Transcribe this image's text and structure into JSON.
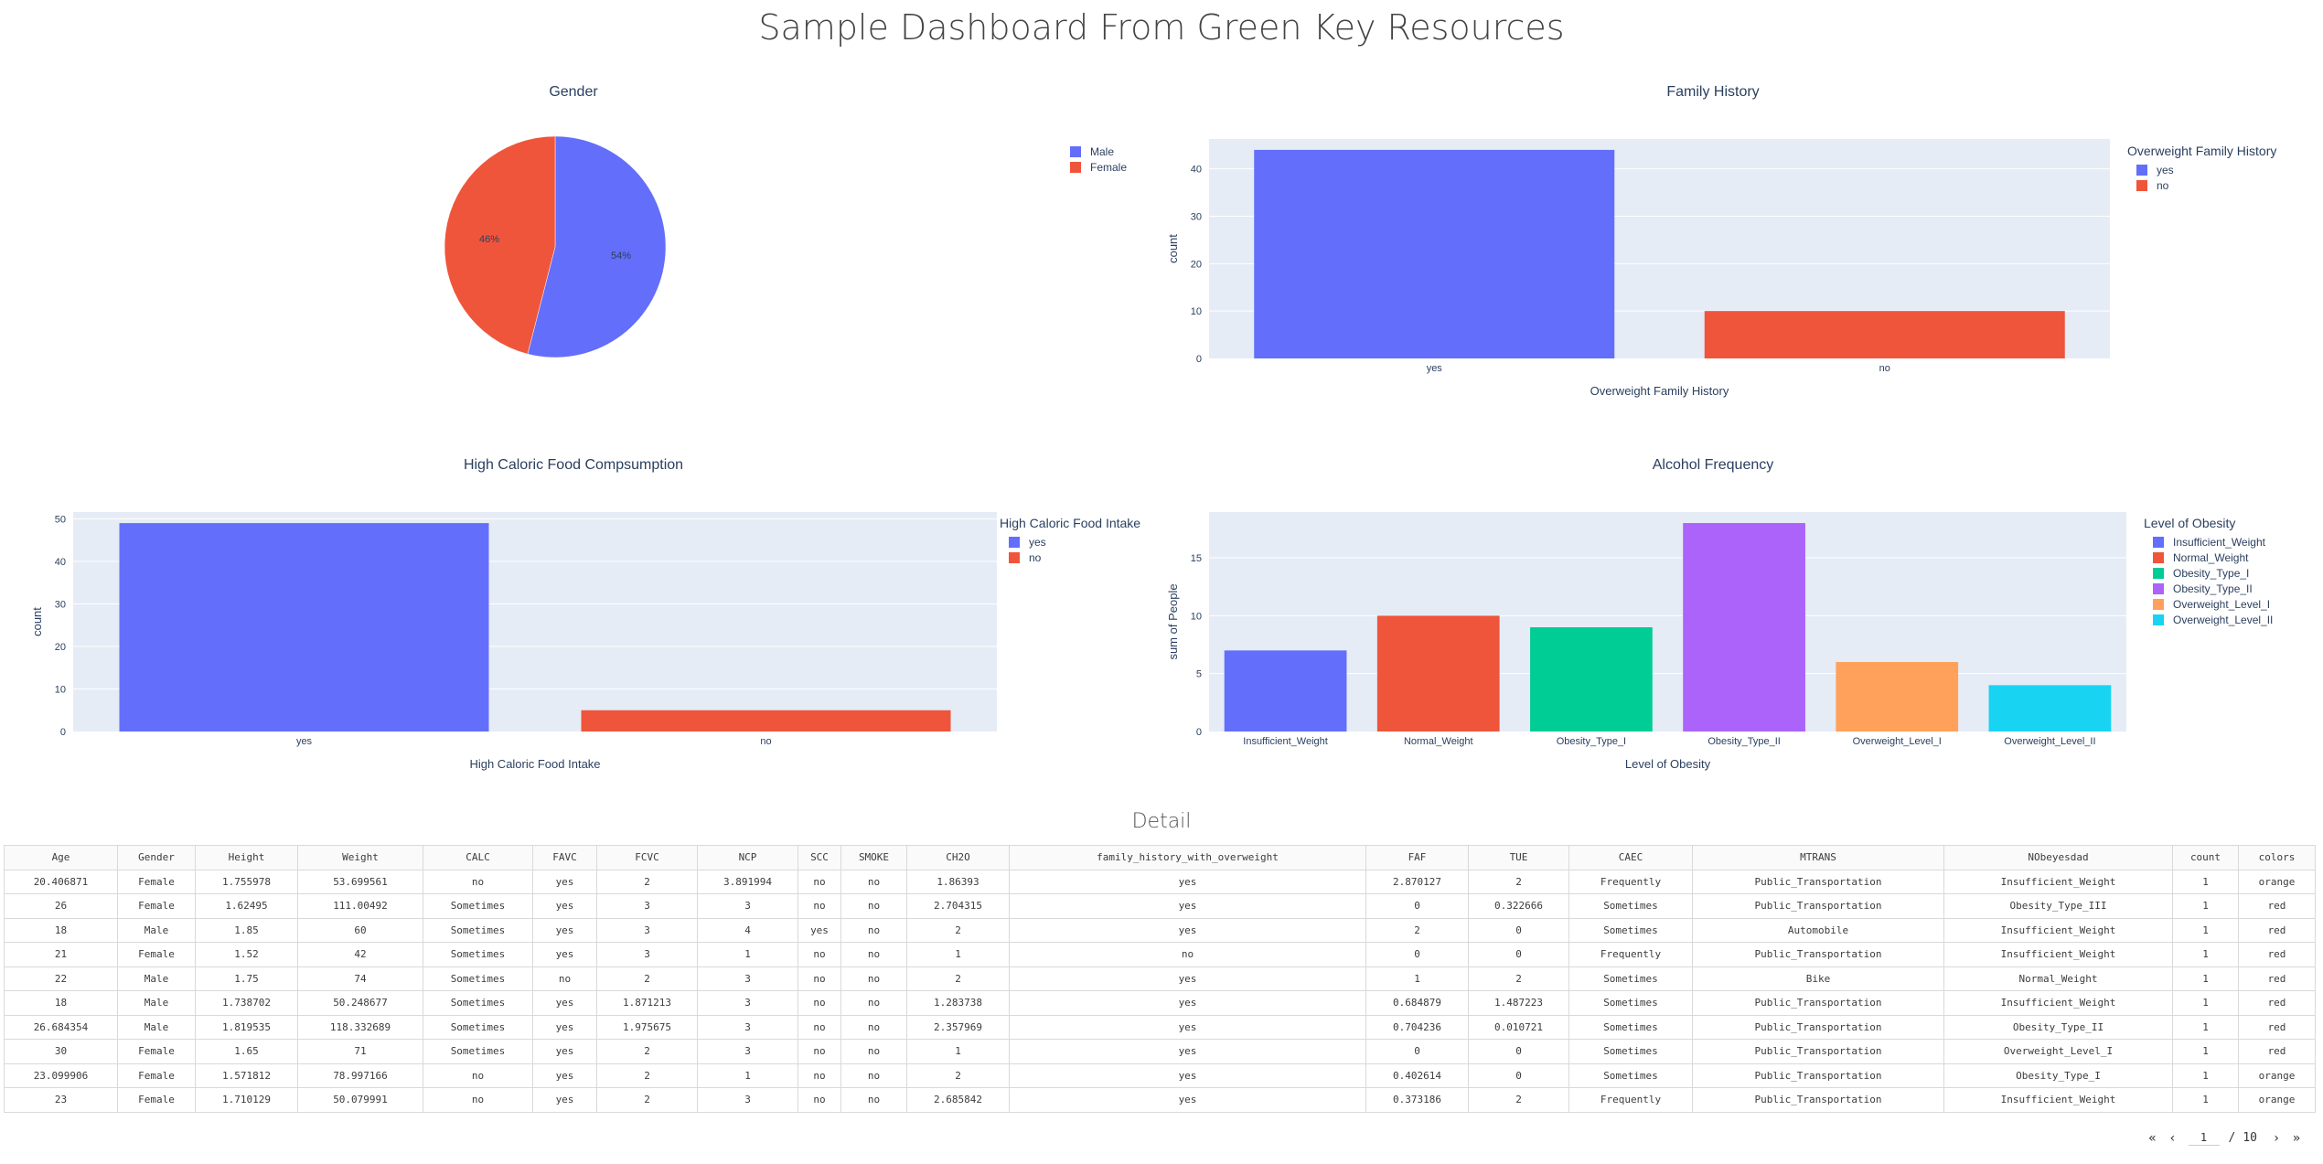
{
  "page_title": "Sample Dashboard From Green Key Resources",
  "detail_title": "Detail",
  "colors": {
    "blue": "#636efa",
    "red": "#ef553b",
    "green": "#00cc96",
    "purple": "#ab63fa",
    "orange": "#ffa15a",
    "cyan": "#19d3f3",
    "plot_bg": "#e5ecf6",
    "grid": "#ffffff"
  },
  "chart_data": [
    {
      "id": "gender",
      "type": "pie",
      "title": "Gender",
      "labels": [
        "Male",
        "Female"
      ],
      "values": [
        54,
        46
      ],
      "slice_labels": [
        "54%",
        "46%"
      ]
    },
    {
      "id": "family",
      "type": "bar",
      "title": "Family History",
      "categories": [
        "yes",
        "no"
      ],
      "values": [
        44,
        10
      ],
      "xlabel": "Overweight Family History",
      "ylabel": "count",
      "ylim": [
        0,
        46.3
      ],
      "yticks": [
        0,
        10,
        20,
        30,
        40
      ],
      "legend_title": "Overweight Family History",
      "legend": [
        "yes",
        "no"
      ]
    },
    {
      "id": "caloric",
      "type": "bar",
      "title": "High Caloric Food Compsumption",
      "categories": [
        "yes",
        "no"
      ],
      "values": [
        49,
        5
      ],
      "xlabel": "High Caloric Food Intake",
      "ylabel": "count",
      "ylim": [
        0,
        51.6
      ],
      "yticks": [
        0,
        10,
        20,
        30,
        40,
        50
      ],
      "legend_title": "High Caloric Food Intake",
      "legend": [
        "yes",
        "no"
      ]
    },
    {
      "id": "alcohol",
      "type": "bar",
      "title": "Alcohol Frequency",
      "categories": [
        "Insufficient_Weight",
        "Normal_Weight",
        "Obesity_Type_I",
        "Obesity_Type_II",
        "Overweight_Level_I",
        "Overweight_Level_II"
      ],
      "values": [
        7,
        10,
        9,
        18,
        6,
        4
      ],
      "xlabel": "Level of Obesity",
      "ylabel": "sum of People",
      "ylim": [
        0,
        18.95
      ],
      "yticks": [
        0,
        5,
        10,
        15
      ],
      "legend_title": "Level of Obesity",
      "legend": [
        "Insufficient_Weight",
        "Normal_Weight",
        "Obesity_Type_I",
        "Obesity_Type_II",
        "Overweight_Level_I",
        "Overweight_Level_II"
      ]
    }
  ],
  "table": {
    "columns": [
      "Age",
      "Gender",
      "Height",
      "Weight",
      "CALC",
      "FAVC",
      "FCVC",
      "NCP",
      "SCC",
      "SMOKE",
      "CH2O",
      "family_history_with_overweight",
      "FAF",
      "TUE",
      "CAEC",
      "MTRANS",
      "NObeyesdad",
      "count",
      "colors"
    ],
    "rows": [
      [
        "20.406871",
        "Female",
        "1.755978",
        "53.699561",
        "no",
        "yes",
        "2",
        "3.891994",
        "no",
        "no",
        "1.86393",
        "yes",
        "2.870127",
        "2",
        "Frequently",
        "Public_Transportation",
        "Insufficient_Weight",
        "1",
        "orange"
      ],
      [
        "26",
        "Female",
        "1.62495",
        "111.00492",
        "Sometimes",
        "yes",
        "3",
        "3",
        "no",
        "no",
        "2.704315",
        "yes",
        "0",
        "0.322666",
        "Sometimes",
        "Public_Transportation",
        "Obesity_Type_III",
        "1",
        "red"
      ],
      [
        "18",
        "Male",
        "1.85",
        "60",
        "Sometimes",
        "yes",
        "3",
        "4",
        "yes",
        "no",
        "2",
        "yes",
        "2",
        "0",
        "Sometimes",
        "Automobile",
        "Insufficient_Weight",
        "1",
        "red"
      ],
      [
        "21",
        "Female",
        "1.52",
        "42",
        "Sometimes",
        "yes",
        "3",
        "1",
        "no",
        "no",
        "1",
        "no",
        "0",
        "0",
        "Frequently",
        "Public_Transportation",
        "Insufficient_Weight",
        "1",
        "red"
      ],
      [
        "22",
        "Male",
        "1.75",
        "74",
        "Sometimes",
        "no",
        "2",
        "3",
        "no",
        "no",
        "2",
        "yes",
        "1",
        "2",
        "Sometimes",
        "Bike",
        "Normal_Weight",
        "1",
        "red"
      ],
      [
        "18",
        "Male",
        "1.738702",
        "50.248677",
        "Sometimes",
        "yes",
        "1.871213",
        "3",
        "no",
        "no",
        "1.283738",
        "yes",
        "0.684879",
        "1.487223",
        "Sometimes",
        "Public_Transportation",
        "Insufficient_Weight",
        "1",
        "red"
      ],
      [
        "26.684354",
        "Male",
        "1.819535",
        "118.332689",
        "Sometimes",
        "yes",
        "1.975675",
        "3",
        "no",
        "no",
        "2.357969",
        "yes",
        "0.704236",
        "0.010721",
        "Sometimes",
        "Public_Transportation",
        "Obesity_Type_II",
        "1",
        "red"
      ],
      [
        "30",
        "Female",
        "1.65",
        "71",
        "Sometimes",
        "yes",
        "2",
        "3",
        "no",
        "no",
        "1",
        "yes",
        "0",
        "0",
        "Sometimes",
        "Public_Transportation",
        "Overweight_Level_I",
        "1",
        "red"
      ],
      [
        "23.099906",
        "Female",
        "1.571812",
        "78.997166",
        "no",
        "yes",
        "2",
        "1",
        "no",
        "no",
        "2",
        "yes",
        "0.402614",
        "0",
        "Sometimes",
        "Public_Transportation",
        "Obesity_Type_I",
        "1",
        "orange"
      ],
      [
        "23",
        "Female",
        "1.710129",
        "50.079991",
        "no",
        "yes",
        "2",
        "3",
        "no",
        "no",
        "2.685842",
        "yes",
        "0.373186",
        "2",
        "Frequently",
        "Public_Transportation",
        "Insufficient_Weight",
        "1",
        "orange"
      ]
    ]
  },
  "pager": {
    "first": "«",
    "prev": "‹",
    "current": "1",
    "sep": "/",
    "total": "10",
    "next": "›",
    "last": "»"
  }
}
